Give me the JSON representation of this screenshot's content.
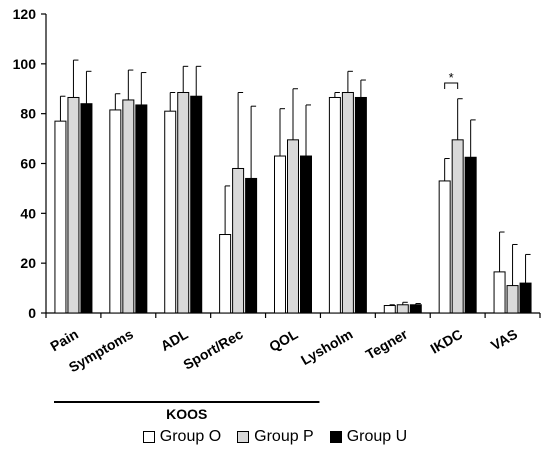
{
  "chart_data": {
    "type": "bar",
    "categories": [
      "Pain",
      "Symptoms",
      "ADL",
      "Sport/Rec",
      "QOL",
      "Lysholm",
      "Tegner",
      "IKDC",
      "VAS"
    ],
    "series": [
      {
        "name": "Group O",
        "color": "#ffffff",
        "values": [
          77,
          81.5,
          81,
          31.5,
          63,
          86.5,
          3,
          53,
          16.5
        ],
        "errors": [
          10,
          6.5,
          7.5,
          19.5,
          19,
          2,
          0.3,
          9,
          16
        ]
      },
      {
        "name": "Group P",
        "color": "#d9d9d9",
        "values": [
          86.5,
          85.5,
          88.5,
          58,
          69.5,
          88.5,
          3.3,
          69.5,
          11
        ],
        "errors": [
          15,
          12,
          10.5,
          30.5,
          20.5,
          8.5,
          1,
          16.5,
          16.5
        ]
      },
      {
        "name": "Group U",
        "color": "#000000",
        "values": [
          84,
          83.5,
          87,
          54,
          63,
          86.5,
          3.3,
          62.5,
          12
        ],
        "errors": [
          13,
          13,
          12,
          29,
          20.5,
          7,
          0.5,
          15,
          11.5
        ]
      }
    ],
    "yticks": [
      "0",
      "20",
      "40",
      "60",
      "80",
      "100",
      "120"
    ],
    "ylim": [
      0,
      120
    ],
    "group_label": "KOOS",
    "significance": {
      "category": "IKDC",
      "between": [
        "Group O",
        "Group P"
      ],
      "marker": "*"
    },
    "grid": false,
    "legend_position": "bottom"
  }
}
